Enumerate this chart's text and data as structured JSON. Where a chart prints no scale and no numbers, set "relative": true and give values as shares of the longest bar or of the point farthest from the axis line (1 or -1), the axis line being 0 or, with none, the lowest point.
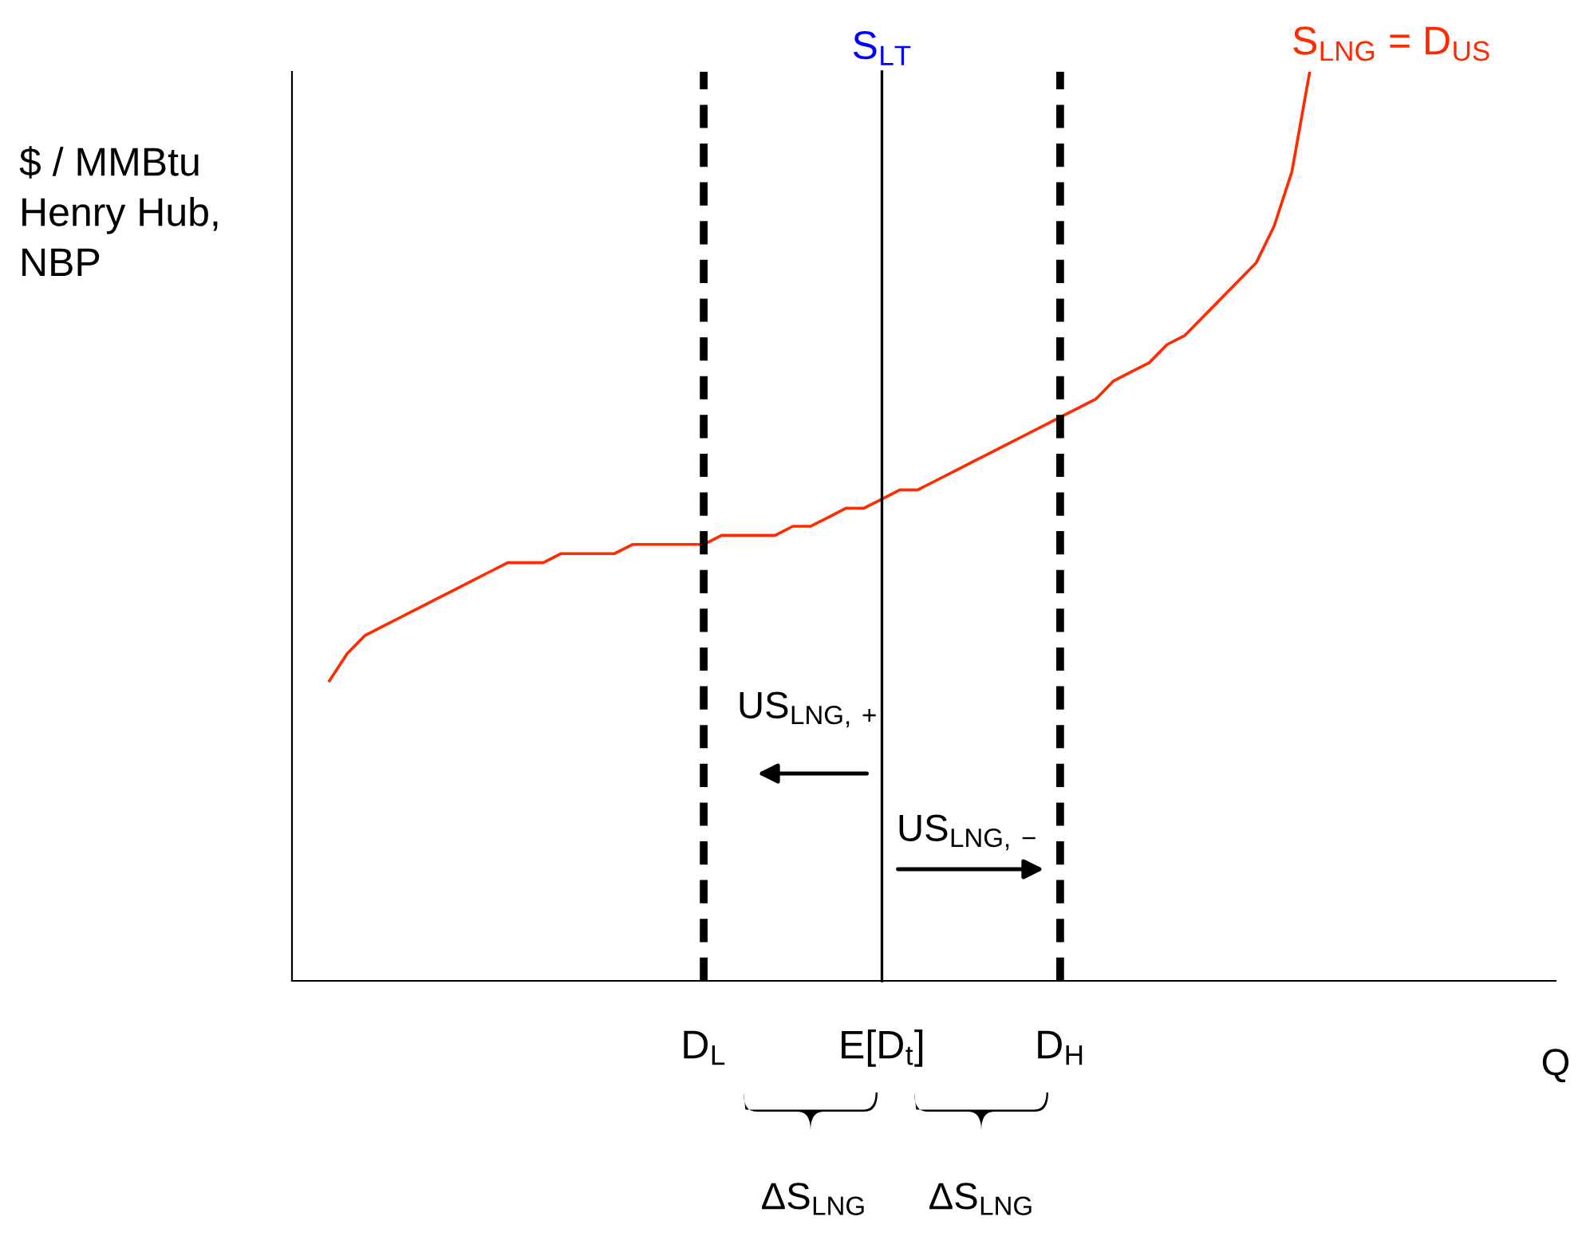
{
  "chart_data": {
    "type": "line",
    "relative": true,
    "ylabel": "$ / MMBtu\nHenry Hub,\nNBP",
    "categories": [
      null,
      null,
      null,
      null,
      null,
      null,
      null,
      null,
      null,
      null,
      null,
      null,
      null,
      null,
      null,
      null,
      null,
      null,
      null,
      null,
      null,
      "D$_{L}$",
      null,
      null,
      null,
      null,
      null,
      null,
      null,
      null,
      null,
      "E[D$_{t}$]",
      null,
      null,
      null,
      null,
      null,
      null,
      null,
      null,
      null,
      "D$_{H}$",
      null,
      null,
      null,
      null,
      null,
      null,
      null,
      null,
      null,
      null,
      null,
      null,
      null,
      null
    ],
    "series": [
      {
        "name": "S$_{LNG}$ = D$_{US}$",
        "color": "#ff2a00",
        "values": [
          0.33,
          0.36,
          0.38,
          0.39,
          0.4,
          0.41,
          0.42,
          0.43,
          0.44,
          0.45,
          0.46,
          0.46,
          0.46,
          0.47,
          0.47,
          0.47,
          0.47,
          0.48,
          0.48,
          0.48,
          0.48,
          0.48,
          0.49,
          0.49,
          0.49,
          0.49,
          0.5,
          0.5,
          0.51,
          0.52,
          0.52,
          0.53,
          0.54,
          0.54,
          0.55,
          0.56,
          0.57,
          0.58,
          0.59,
          0.6,
          0.61,
          0.62,
          0.63,
          0.64,
          0.66,
          0.67,
          0.68,
          0.7,
          0.71,
          0.73,
          0.75,
          0.77,
          0.79,
          0.83,
          0.89,
          1.0
        ]
      }
    ],
    "ref_lines": [
      {
        "axis": "x",
        "value": "D$_{L}$",
        "label": null,
        "color": "#000000",
        "line_style": "dashed"
      },
      {
        "axis": "x",
        "value": "E[D$_{t}$]",
        "label": "S$_{LT}$",
        "color": "#000000",
        "line_style": "solid"
      },
      {
        "axis": "x",
        "value": "D$_{H}$",
        "label": null,
        "color": "#000000",
        "line_style": "dashed"
      }
    ],
    "annotations": [
      "US$_{LNG,+}$",
      "US$_{LNG,−}$",
      "ΔS$_{LNG}$",
      "ΔS$_{LNG}$",
      "Q"
    ],
    "grid": false,
    "legend": false,
    "marker": "none",
    "line_style": "solid"
  }
}
